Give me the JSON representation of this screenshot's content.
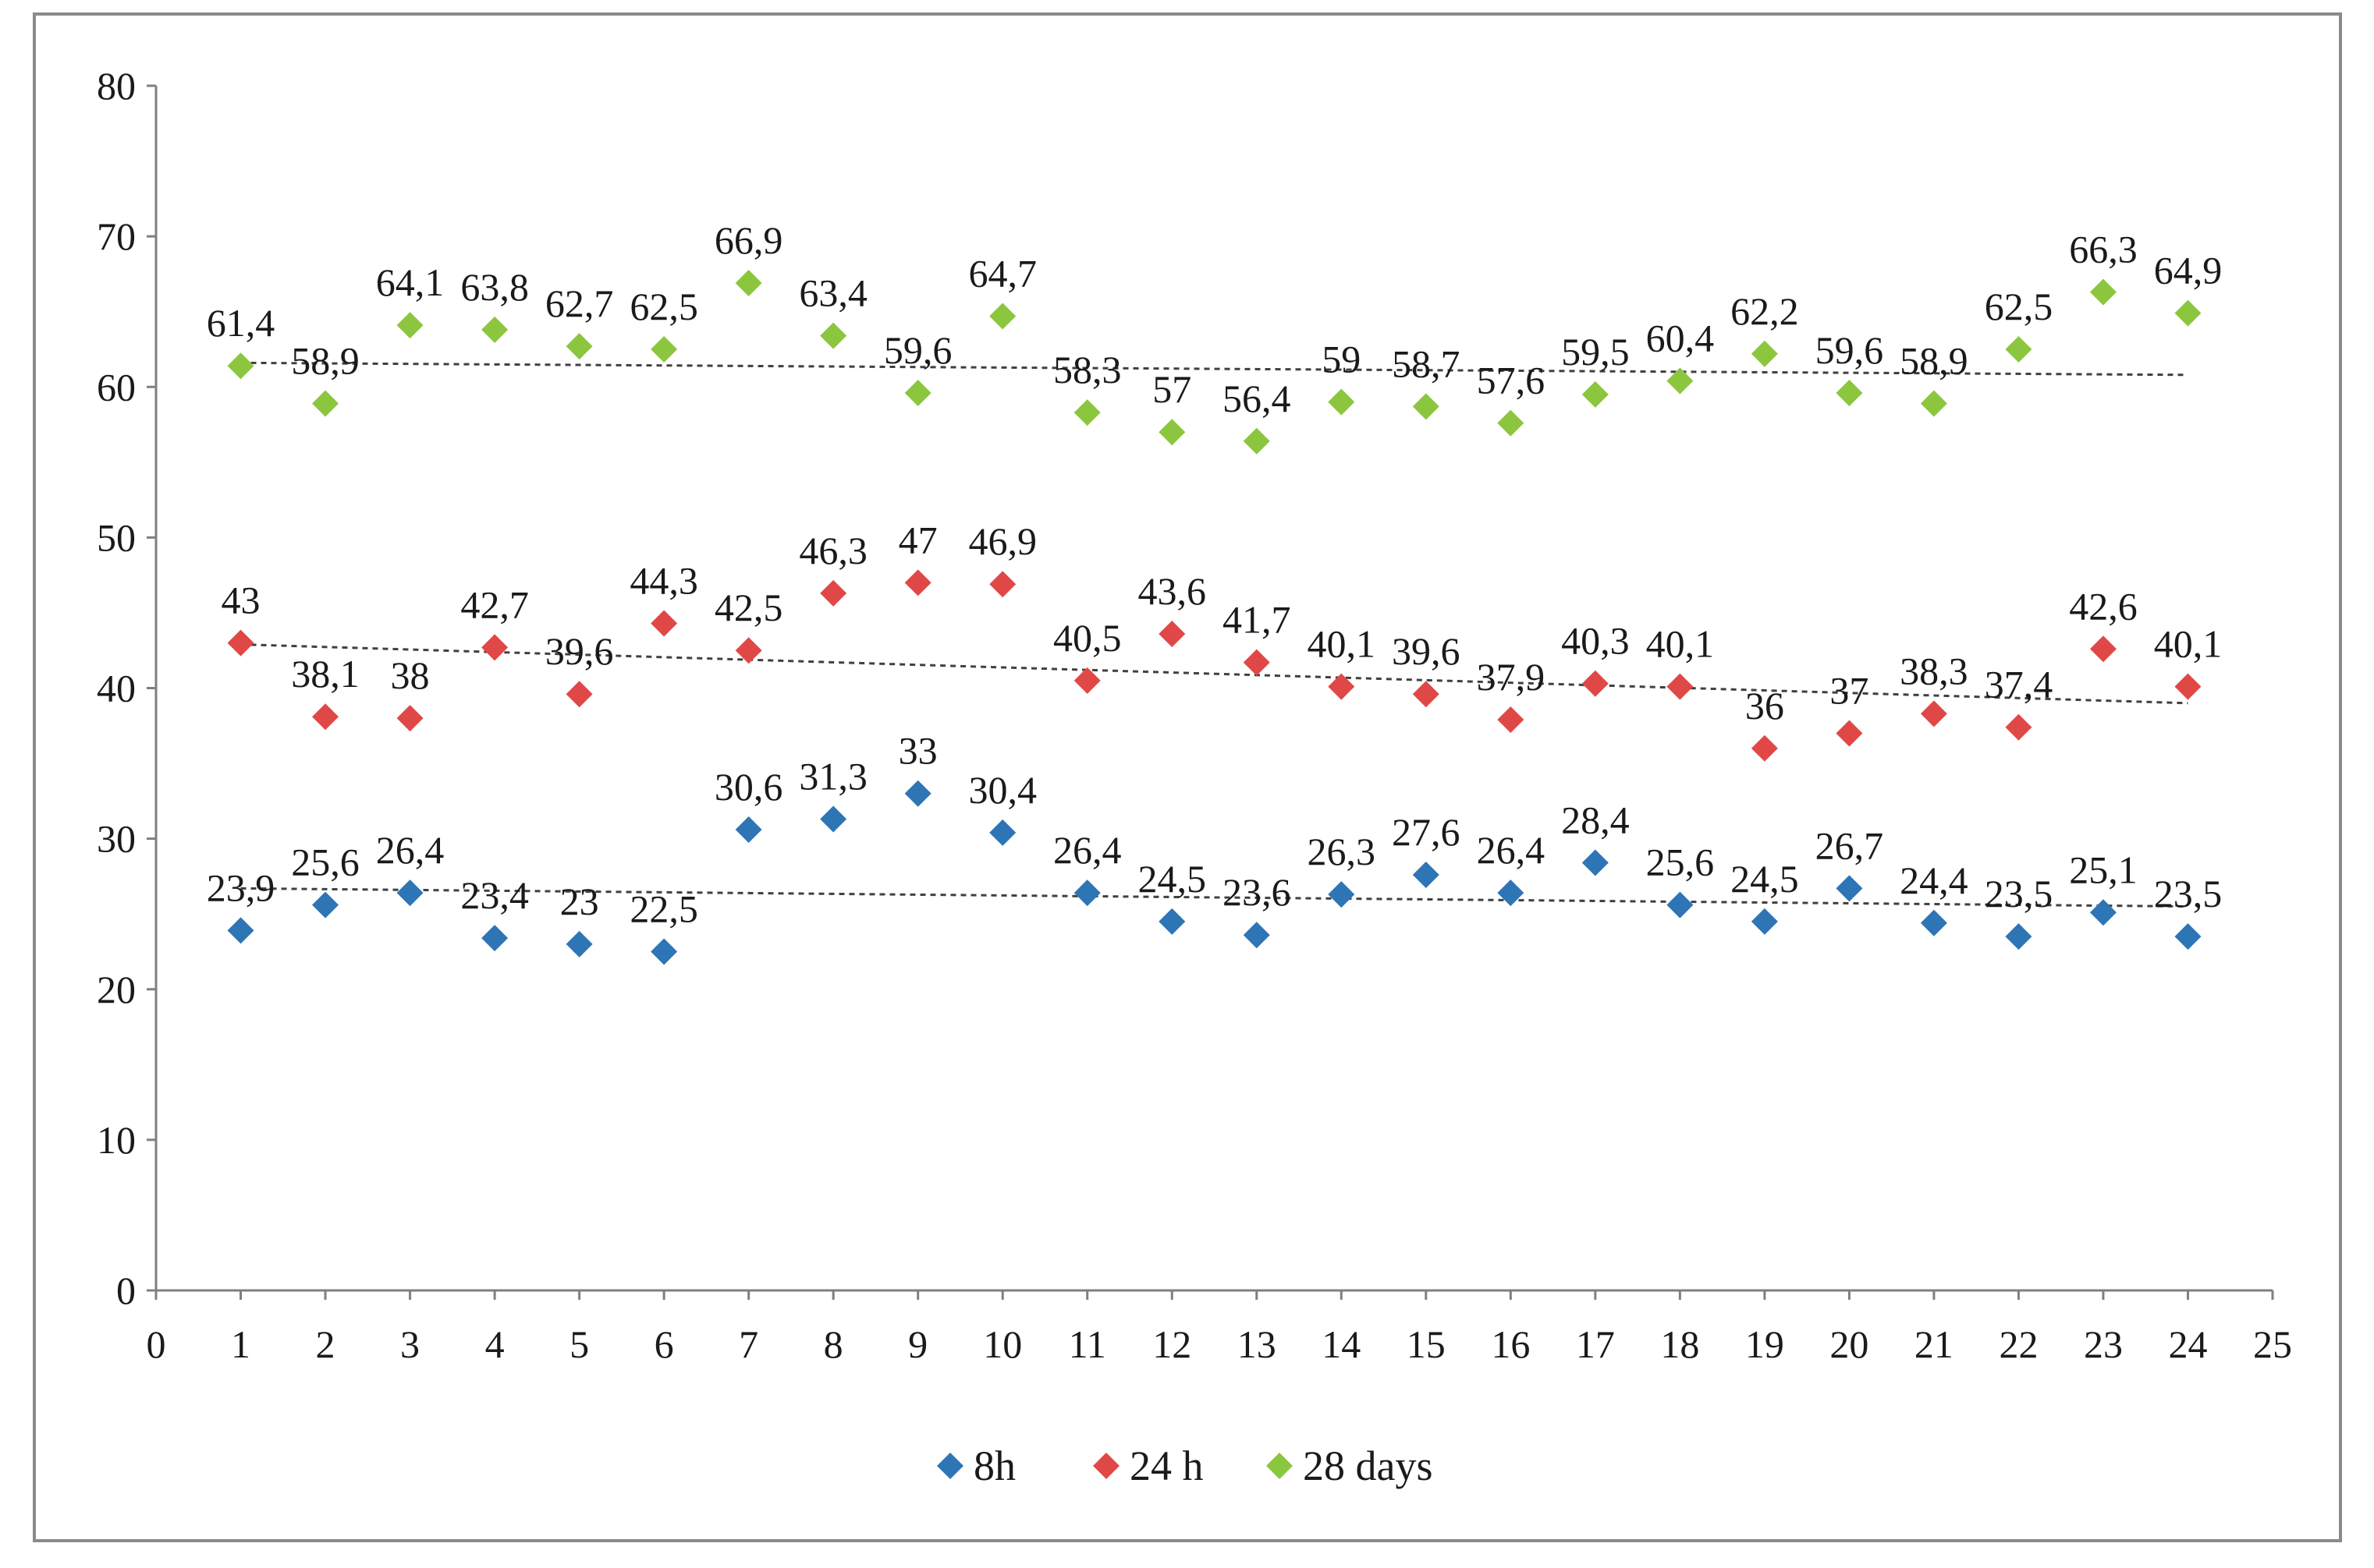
{
  "chart_data": {
    "type": "scatter",
    "title": "",
    "xlabel": "",
    "ylabel": "",
    "xlim": [
      0,
      25
    ],
    "ylim": [
      0,
      80
    ],
    "x_ticks": [
      0,
      1,
      2,
      3,
      4,
      5,
      6,
      7,
      8,
      9,
      10,
      11,
      12,
      13,
      14,
      15,
      16,
      17,
      18,
      19,
      20,
      21,
      22,
      23,
      24,
      25
    ],
    "y_ticks": [
      0,
      10,
      20,
      30,
      40,
      50,
      60,
      70,
      80
    ],
    "grid": false,
    "legend_position": "bottom",
    "marker": "diamond",
    "trendline": "linear-dotted",
    "x": [
      1,
      2,
      3,
      4,
      5,
      6,
      7,
      8,
      9,
      10,
      11,
      12,
      13,
      14,
      15,
      16,
      17,
      18,
      19,
      20,
      21,
      22,
      23,
      24
    ],
    "series": [
      {
        "name": "8h",
        "color": "#2e75b6",
        "values": [
          23.9,
          25.6,
          26.4,
          23.4,
          23,
          22.5,
          30.6,
          31.3,
          33,
          30.4,
          26.4,
          24.5,
          23.6,
          26.3,
          27.6,
          26.4,
          28.4,
          25.6,
          24.5,
          26.7,
          24.4,
          23.5,
          25.1,
          23.5
        ],
        "labels": [
          "23,9",
          "25,6",
          "26,4",
          "23,4",
          "23",
          "22,5",
          "30,6",
          "31,3",
          "33",
          "30,4",
          "26,4",
          "24,5",
          "23,6",
          "26,3",
          "27,6",
          "26,4",
          "28,4",
          "25,6",
          "24,5",
          "26,7",
          "24,4",
          "23,5",
          "25,1",
          "23,5"
        ]
      },
      {
        "name": "24 h",
        "color": "#e04848",
        "values": [
          43,
          38.1,
          38,
          42.7,
          39.6,
          44.3,
          42.5,
          46.3,
          47,
          46.9,
          40.5,
          43.6,
          41.7,
          40.1,
          39.6,
          37.9,
          40.3,
          40.1,
          36,
          37,
          38.3,
          37.4,
          42.6,
          40.1
        ],
        "labels": [
          "43",
          "38,1",
          "38",
          "42,7",
          "39,6",
          "44,3",
          "42,5",
          "46,3",
          "47",
          "46,9",
          "40,5",
          "43,6",
          "41,7",
          "40,1",
          "39,6",
          "37,9",
          "40,3",
          "40,1",
          "36",
          "37",
          "38,3",
          "37,4",
          "42,6",
          "40,1"
        ]
      },
      {
        "name": "28 days",
        "color": "#8cc63f",
        "values": [
          61.4,
          58.9,
          64.1,
          63.8,
          62.7,
          62.5,
          66.9,
          63.4,
          59.6,
          64.7,
          58.3,
          57,
          56.4,
          59,
          58.7,
          57.6,
          59.5,
          60.4,
          62.2,
          59.6,
          58.9,
          62.5,
          66.3,
          64.9
        ],
        "labels": [
          "61,4",
          "58,9",
          "64,1",
          "63,8",
          "62,7",
          "62,5",
          "66,9",
          "63,4",
          "59,6",
          "64,7",
          "58,3",
          "57",
          "56,4",
          "59",
          "58,7",
          "57,6",
          "59,5",
          "60,4",
          "62,2",
          "59,6",
          "58,9",
          "62,5",
          "66,3",
          "64,9"
        ]
      }
    ],
    "trendlines": [
      {
        "series": "8h",
        "start": [
          1,
          26.7
        ],
        "end": [
          24,
          25.5
        ]
      },
      {
        "series": "24 h",
        "start": [
          1,
          42.9
        ],
        "end": [
          24,
          39.0
        ]
      },
      {
        "series": "28 days",
        "start": [
          1,
          61.6
        ],
        "end": [
          24,
          60.8
        ]
      }
    ]
  }
}
